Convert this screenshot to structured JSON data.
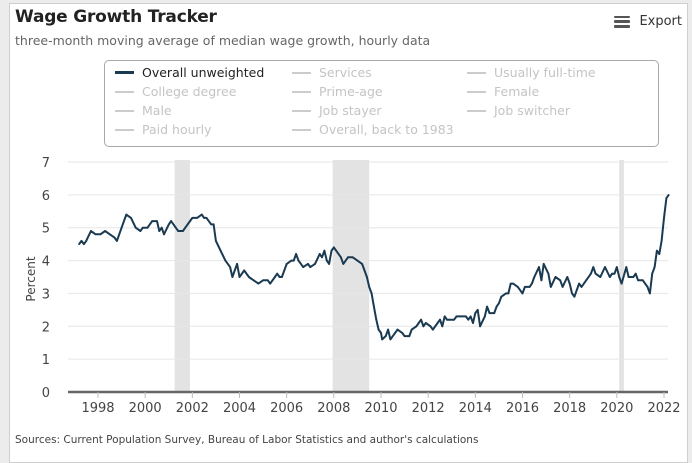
{
  "header": {
    "title": "Wage Growth Tracker",
    "subtitle": "three-month moving average of median wage growth, hourly data",
    "export_label": "Export",
    "export_icon": "hamburger-menu-icon"
  },
  "legend": {
    "items": [
      {
        "label": "Overall unweighted",
        "active": true
      },
      {
        "label": "Services",
        "active": false
      },
      {
        "label": "Usually full-time",
        "active": false
      },
      {
        "label": "College degree",
        "active": false
      },
      {
        "label": "Prime-age",
        "active": false
      },
      {
        "label": "Female",
        "active": false
      },
      {
        "label": "Male",
        "active": false
      },
      {
        "label": "Job stayer",
        "active": false
      },
      {
        "label": "Job switcher",
        "active": false
      },
      {
        "label": "Paid hourly",
        "active": false
      },
      {
        "label": "Overall, back to 1983",
        "active": false
      }
    ]
  },
  "footer": {
    "source": "Sources: Current Population Survey, Bureau of Labor Statistics and author's calculations"
  },
  "colors": {
    "series": "#1a3a52",
    "recession": "#e3e3e3",
    "grid": "#e6e6e6",
    "axis": "#666666"
  },
  "chart_data": {
    "type": "line",
    "title": "Wage Growth Tracker",
    "subtitle": "three-month moving average of median wage growth, hourly data",
    "xlabel": "",
    "ylabel": "Percent",
    "xlim": [
      1996.75,
      2022.3
    ],
    "ylim": [
      0,
      7
    ],
    "yticks": [
      0,
      1,
      2,
      3,
      4,
      5,
      6,
      7
    ],
    "xticks": [
      1998,
      2000,
      2002,
      2004,
      2006,
      2008,
      2010,
      2012,
      2014,
      2016,
      2018,
      2020,
      2022
    ],
    "grid": true,
    "legend_position": "top",
    "recessions": [
      [
        2001.25,
        2001.9
      ],
      [
        2007.95,
        2009.5
      ],
      [
        2020.1,
        2020.3
      ]
    ],
    "series": [
      {
        "name": "Overall unweighted",
        "points": [
          [
            1997.2,
            4.5
          ],
          [
            1997.3,
            4.6
          ],
          [
            1997.4,
            4.5
          ],
          [
            1997.5,
            4.6
          ],
          [
            1997.7,
            4.9
          ],
          [
            1997.9,
            4.8
          ],
          [
            1998.1,
            4.8
          ],
          [
            1998.3,
            4.9
          ],
          [
            1998.5,
            4.8
          ],
          [
            1998.7,
            4.7
          ],
          [
            1998.8,
            4.6
          ],
          [
            1999.0,
            5.0
          ],
          [
            1999.2,
            5.4
          ],
          [
            1999.4,
            5.3
          ],
          [
            1999.6,
            5.0
          ],
          [
            1999.8,
            4.9
          ],
          [
            1999.9,
            5.0
          ],
          [
            2000.1,
            5.0
          ],
          [
            2000.3,
            5.2
          ],
          [
            2000.5,
            5.2
          ],
          [
            2000.6,
            4.9
          ],
          [
            2000.7,
            5.0
          ],
          [
            2000.8,
            4.8
          ],
          [
            2001.0,
            5.1
          ],
          [
            2001.1,
            5.2
          ],
          [
            2001.3,
            5.0
          ],
          [
            2001.4,
            4.9
          ],
          [
            2001.6,
            4.9
          ],
          [
            2001.8,
            5.1
          ],
          [
            2001.9,
            5.2
          ],
          [
            2002.0,
            5.3
          ],
          [
            2002.2,
            5.3
          ],
          [
            2002.4,
            5.4
          ],
          [
            2002.5,
            5.3
          ],
          [
            2002.6,
            5.3
          ],
          [
            2002.8,
            5.1
          ],
          [
            2002.9,
            5.1
          ],
          [
            2003.0,
            4.6
          ],
          [
            2003.2,
            4.3
          ],
          [
            2003.4,
            4.0
          ],
          [
            2003.6,
            3.8
          ],
          [
            2003.7,
            3.5
          ],
          [
            2003.9,
            3.9
          ],
          [
            2004.0,
            3.5
          ],
          [
            2004.2,
            3.7
          ],
          [
            2004.4,
            3.5
          ],
          [
            2004.6,
            3.4
          ],
          [
            2004.8,
            3.3
          ],
          [
            2005.0,
            3.4
          ],
          [
            2005.2,
            3.4
          ],
          [
            2005.3,
            3.3
          ],
          [
            2005.5,
            3.5
          ],
          [
            2005.6,
            3.6
          ],
          [
            2005.7,
            3.5
          ],
          [
            2005.8,
            3.5
          ],
          [
            2006.0,
            3.9
          ],
          [
            2006.2,
            4.0
          ],
          [
            2006.3,
            4.0
          ],
          [
            2006.4,
            4.2
          ],
          [
            2006.5,
            4.0
          ],
          [
            2006.7,
            3.8
          ],
          [
            2006.9,
            3.9
          ],
          [
            2007.0,
            3.8
          ],
          [
            2007.2,
            3.9
          ],
          [
            2007.4,
            4.2
          ],
          [
            2007.5,
            4.1
          ],
          [
            2007.6,
            4.3
          ],
          [
            2007.7,
            4.0
          ],
          [
            2007.8,
            3.9
          ],
          [
            2007.9,
            4.3
          ],
          [
            2008.0,
            4.4
          ],
          [
            2008.1,
            4.3
          ],
          [
            2008.3,
            4.1
          ],
          [
            2008.4,
            3.9
          ],
          [
            2008.6,
            4.1
          ],
          [
            2008.8,
            4.1
          ],
          [
            2009.0,
            4.0
          ],
          [
            2009.2,
            3.9
          ],
          [
            2009.4,
            3.5
          ],
          [
            2009.5,
            3.2
          ],
          [
            2009.6,
            3.0
          ],
          [
            2009.7,
            2.6
          ],
          [
            2009.8,
            2.2
          ],
          [
            2009.9,
            1.9
          ],
          [
            2010.0,
            1.8
          ],
          [
            2010.05,
            1.6
          ],
          [
            2010.2,
            1.7
          ],
          [
            2010.3,
            1.9
          ],
          [
            2010.4,
            1.6
          ],
          [
            2010.6,
            1.8
          ],
          [
            2010.7,
            1.9
          ],
          [
            2010.9,
            1.8
          ],
          [
            2011.0,
            1.7
          ],
          [
            2011.2,
            1.7
          ],
          [
            2011.3,
            1.9
          ],
          [
            2011.5,
            2.0
          ],
          [
            2011.6,
            2.1
          ],
          [
            2011.7,
            2.2
          ],
          [
            2011.8,
            2.0
          ],
          [
            2011.9,
            2.1
          ],
          [
            2012.1,
            2.0
          ],
          [
            2012.2,
            1.9
          ],
          [
            2012.4,
            2.1
          ],
          [
            2012.5,
            2.2
          ],
          [
            2012.6,
            2.0
          ],
          [
            2012.7,
            2.3
          ],
          [
            2012.8,
            2.2
          ],
          [
            2012.9,
            2.2
          ],
          [
            2013.1,
            2.2
          ],
          [
            2013.2,
            2.3
          ],
          [
            2013.4,
            2.3
          ],
          [
            2013.6,
            2.3
          ],
          [
            2013.7,
            2.2
          ],
          [
            2013.8,
            2.3
          ],
          [
            2013.9,
            2.1
          ],
          [
            2014.0,
            2.4
          ],
          [
            2014.1,
            2.5
          ],
          [
            2014.2,
            2.0
          ],
          [
            2014.4,
            2.3
          ],
          [
            2014.5,
            2.6
          ],
          [
            2014.6,
            2.4
          ],
          [
            2014.8,
            2.4
          ],
          [
            2014.9,
            2.6
          ],
          [
            2015.0,
            2.7
          ],
          [
            2015.1,
            2.9
          ],
          [
            2015.3,
            3.0
          ],
          [
            2015.4,
            3.0
          ],
          [
            2015.5,
            3.3
          ],
          [
            2015.6,
            3.3
          ],
          [
            2015.8,
            3.2
          ],
          [
            2016.0,
            3.0
          ],
          [
            2016.1,
            3.2
          ],
          [
            2016.3,
            3.2
          ],
          [
            2016.4,
            3.3
          ],
          [
            2016.5,
            3.5
          ],
          [
            2016.7,
            3.8
          ],
          [
            2016.8,
            3.4
          ],
          [
            2016.9,
            3.9
          ],
          [
            2017.1,
            3.6
          ],
          [
            2017.2,
            3.2
          ],
          [
            2017.4,
            3.5
          ],
          [
            2017.6,
            3.4
          ],
          [
            2017.7,
            3.2
          ],
          [
            2017.9,
            3.5
          ],
          [
            2018.0,
            3.3
          ],
          [
            2018.1,
            3.0
          ],
          [
            2018.2,
            2.9
          ],
          [
            2018.4,
            3.3
          ],
          [
            2018.5,
            3.2
          ],
          [
            2018.7,
            3.4
          ],
          [
            2018.9,
            3.6
          ],
          [
            2019.0,
            3.8
          ],
          [
            2019.1,
            3.6
          ],
          [
            2019.3,
            3.5
          ],
          [
            2019.5,
            3.8
          ],
          [
            2019.7,
            3.5
          ],
          [
            2019.8,
            3.6
          ],
          [
            2019.9,
            3.6
          ],
          [
            2020.0,
            3.8
          ],
          [
            2020.1,
            3.5
          ],
          [
            2020.2,
            3.3
          ],
          [
            2020.4,
            3.8
          ],
          [
            2020.5,
            3.5
          ],
          [
            2020.7,
            3.5
          ],
          [
            2020.8,
            3.6
          ],
          [
            2020.9,
            3.4
          ],
          [
            2021.1,
            3.4
          ],
          [
            2021.2,
            3.3
          ],
          [
            2021.3,
            3.2
          ],
          [
            2021.4,
            3.0
          ],
          [
            2021.5,
            3.6
          ],
          [
            2021.6,
            3.8
          ],
          [
            2021.7,
            4.3
          ],
          [
            2021.8,
            4.2
          ],
          [
            2021.9,
            4.6
          ],
          [
            2022.0,
            5.3
          ],
          [
            2022.1,
            5.9
          ],
          [
            2022.2,
            6.0
          ]
        ]
      }
    ]
  }
}
